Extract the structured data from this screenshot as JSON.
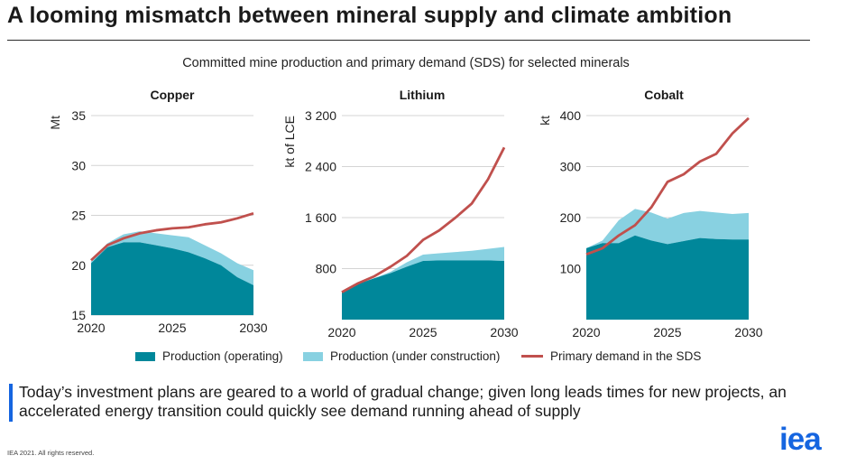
{
  "page": {
    "title": "A looming mismatch between mineral supply and climate ambition",
    "subtitle": "Committed mine production and primary demand (SDS) for selected minerals",
    "note": "Today’s investment plans are geared to a world of gradual change; given long leads times for new projects, an accelerated energy transition could quickly see demand running ahead of supply",
    "copyright": "IEA 2021. All rights reserved.",
    "logo": "iea"
  },
  "colors": {
    "operating": "#00879a",
    "construction": "#88d1e1",
    "demand": "#c0504d",
    "grid": "#d4d4d4",
    "accent": "#1565e0"
  },
  "legend": [
    {
      "key": "operating",
      "label": "Production (operating)"
    },
    {
      "key": "construction",
      "label": "Production (under construction)"
    },
    {
      "key": "demand",
      "label": "Primary demand in the SDS"
    }
  ],
  "chart_data": [
    {
      "type": "area",
      "title": "Copper",
      "ylabel": "Mt",
      "x": [
        2020,
        2021,
        2022,
        2023,
        2024,
        2025,
        2026,
        2027,
        2028,
        2029,
        2030
      ],
      "xticks": [
        "2020",
        "2025",
        "2030"
      ],
      "ylim": [
        15,
        35
      ],
      "yticks": [
        15,
        20,
        25,
        30,
        35
      ],
      "ytick_labels": [
        "15",
        "20",
        "25",
        "30",
        "35"
      ],
      "series": [
        {
          "name": "Production (operating)",
          "key": "operating",
          "values": [
            20.2,
            21.8,
            22.3,
            22.3,
            22.0,
            21.7,
            21.3,
            20.7,
            20.0,
            18.8,
            18.0
          ]
        },
        {
          "name": "Production (under construction)",
          "key": "construction",
          "values": [
            0.2,
            0.4,
            0.8,
            1.1,
            1.2,
            1.3,
            1.5,
            1.3,
            1.2,
            1.4,
            1.5
          ]
        },
        {
          "name": "Primary demand in the SDS",
          "key": "demand",
          "values": [
            20.5,
            22.0,
            22.7,
            23.2,
            23.5,
            23.7,
            23.8,
            24.1,
            24.3,
            24.7,
            25.2
          ]
        }
      ]
    },
    {
      "type": "area",
      "title": "Lithium",
      "ylabel": "kt of LCE",
      "x": [
        2020,
        2021,
        2022,
        2023,
        2024,
        2025,
        2026,
        2027,
        2028,
        2029,
        2030
      ],
      "xticks": [
        "2020",
        "2025",
        "2030"
      ],
      "ylim": [
        0,
        3200
      ],
      "yticks": [
        800,
        1600,
        2400,
        3200
      ],
      "ytick_labels": [
        "800",
        "1 600",
        "2 400",
        "3 200"
      ],
      "series": [
        {
          "name": "Production (operating)",
          "key": "operating",
          "values": [
            430,
            560,
            650,
            730,
            830,
            920,
            930,
            930,
            930,
            930,
            920
          ]
        },
        {
          "name": "Production (under construction)",
          "key": "construction",
          "values": [
            0,
            0,
            0,
            20,
            70,
            100,
            110,
            130,
            150,
            180,
            220
          ]
        },
        {
          "name": "Primary demand in the SDS",
          "key": "demand",
          "values": [
            430,
            570,
            680,
            830,
            1000,
            1250,
            1400,
            1600,
            1820,
            2200,
            2700
          ]
        }
      ]
    },
    {
      "type": "area",
      "title": "Cobalt",
      "ylabel": "kt",
      "x": [
        2020,
        2021,
        2022,
        2023,
        2024,
        2025,
        2026,
        2027,
        2028,
        2029,
        2030
      ],
      "xticks": [
        "2020",
        "2025",
        "2030"
      ],
      "ylim": [
        0,
        400
      ],
      "yticks": [
        100,
        200,
        300,
        400
      ],
      "ytick_labels": [
        "100",
        "200",
        "300",
        "400"
      ],
      "series": [
        {
          "name": "Production (operating)",
          "key": "operating",
          "values": [
            140,
            150,
            150,
            165,
            155,
            148,
            154,
            160,
            158,
            157,
            157
          ]
        },
        {
          "name": "Production (under construction)",
          "key": "construction",
          "values": [
            0,
            5,
            45,
            52,
            55,
            50,
            55,
            53,
            52,
            50,
            52
          ]
        },
        {
          "name": "Primary demand in the SDS",
          "key": "demand",
          "values": [
            128,
            140,
            165,
            185,
            220,
            270,
            285,
            310,
            325,
            365,
            395
          ]
        }
      ]
    }
  ]
}
